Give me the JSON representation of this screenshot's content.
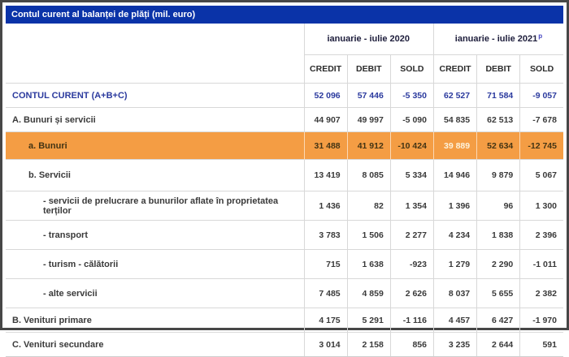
{
  "title": "Contul curent al balanței de plăți (mil. euro)",
  "periods": [
    {
      "label": "ianuarie - iulie 2020",
      "sup": ""
    },
    {
      "label": "ianuarie - iulie 2021",
      "sup": "p"
    }
  ],
  "columns": [
    "CREDIT",
    "DEBIT",
    "SOLD",
    "CREDIT",
    "DEBIT",
    "SOLD"
  ],
  "rows": [
    {
      "label": "CONTUL CURENT (A+B+C)",
      "indent": 0,
      "style": "total",
      "values": [
        "52 096",
        "57 446",
        "-5 350",
        "62 527",
        "71 584",
        "-9 057"
      ]
    },
    {
      "label": "A. Bunuri și servicii",
      "indent": 0,
      "style": "section",
      "values": [
        "44 907",
        "49 997",
        "-5 090",
        "54 835",
        "62 513",
        "-7 678"
      ]
    },
    {
      "label": "a. Bunuri",
      "indent": 1,
      "style": "highlight",
      "highlight_cell": 3,
      "values": [
        "31 488",
        "41 912",
        "-10 424",
        "39 889",
        "52 634",
        "-12 745"
      ]
    },
    {
      "label": "b. Servicii",
      "indent": 1,
      "style": "sub",
      "values": [
        "13 419",
        "8 085",
        "5 334",
        "14 946",
        "9 879",
        "5 067"
      ]
    },
    {
      "label": "- servicii de prelucrare a bunurilor aflate în proprietatea terților",
      "indent": 2,
      "style": "detail",
      "values": [
        "1 436",
        "82",
        "1 354",
        "1 396",
        "96",
        "1 300"
      ]
    },
    {
      "label": "- transport",
      "indent": 2,
      "style": "detail",
      "values": [
        "3 783",
        "1 506",
        "2 277",
        "4 234",
        "1 838",
        "2 396"
      ]
    },
    {
      "label": "- turism - călătorii",
      "indent": 2,
      "style": "detail",
      "values": [
        "715",
        "1 638",
        "-923",
        "1 279",
        "2 290",
        "-1 011"
      ]
    },
    {
      "label": "- alte servicii",
      "indent": 2,
      "style": "detail",
      "values": [
        "7 485",
        "4 859",
        "2 626",
        "8 037",
        "5 655",
        "2 382"
      ]
    },
    {
      "label": "B. Venituri primare",
      "indent": 0,
      "style": "section",
      "values": [
        "4 175",
        "5 291",
        "-1 116",
        "4 457",
        "6 427",
        "-1 970"
      ]
    },
    {
      "label": "C. Venituri secundare",
      "indent": 0,
      "style": "section",
      "values": [
        "3 014",
        "2 158",
        "856",
        "3 235",
        "2 644",
        "591"
      ]
    }
  ],
  "chart_data": {
    "type": "table",
    "title": "Contul curent al balanței de plăți (mil. euro)",
    "column_groups": [
      "ianuarie - iulie 2020",
      "ianuarie - iulie 2021 (p = provizoriu)"
    ],
    "columns": [
      "CREDIT 2020",
      "DEBIT 2020",
      "SOLD 2020",
      "CREDIT 2021",
      "DEBIT 2021",
      "SOLD 2021"
    ],
    "rows": [
      {
        "label": "CONTUL CURENT (A+B+C)",
        "values": [
          52096,
          57446,
          -5350,
          62527,
          71584,
          -9057
        ]
      },
      {
        "label": "A. Bunuri și servicii",
        "values": [
          44907,
          49997,
          -5090,
          54835,
          62513,
          -7678
        ]
      },
      {
        "label": "a. Bunuri",
        "values": [
          31488,
          41912,
          -10424,
          39889,
          52634,
          -12745
        ]
      },
      {
        "label": "b. Servicii",
        "values": [
          13419,
          8085,
          5334,
          14946,
          9879,
          5067
        ]
      },
      {
        "label": "- servicii de prelucrare a bunurilor aflate în proprietatea terților",
        "values": [
          1436,
          82,
          1354,
          1396,
          96,
          1300
        ]
      },
      {
        "label": "- transport",
        "values": [
          3783,
          1506,
          2277,
          4234,
          1838,
          2396
        ]
      },
      {
        "label": "- turism - călătorii",
        "values": [
          715,
          1638,
          -923,
          1279,
          2290,
          -1011
        ]
      },
      {
        "label": "- alte servicii",
        "values": [
          7485,
          4859,
          2626,
          8037,
          5655,
          2382
        ]
      },
      {
        "label": "B. Venituri primare",
        "values": [
          4175,
          5291,
          -1116,
          4457,
          6427,
          -1970
        ]
      },
      {
        "label": "C. Venituri secundare",
        "values": [
          3014,
          2158,
          856,
          3235,
          2644,
          591
        ]
      }
    ]
  },
  "colors": {
    "title_bar": "#0a33a8",
    "title_text": "#ffffff",
    "total_row_text": "#2b3a9e",
    "highlight_row_bg": "#f49d44",
    "highlight_value_text": "#fdf3dd",
    "body_text": "#3a3a3a",
    "grid_line": "#d8d8d8",
    "frame_border": "#474747",
    "provisional_sup": "#4040c0"
  }
}
